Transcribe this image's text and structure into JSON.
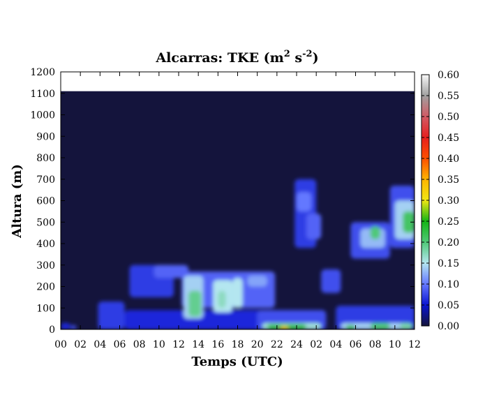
{
  "chart_data": {
    "type": "heatmap",
    "title": "Alcarras: TKE (m² s⁻²)",
    "title_parts": {
      "main": "Alcarras: TKE (m",
      "sup1": "2",
      "mid": " s",
      "sup2": "-2",
      "end": ")"
    },
    "xlabel": "Temps (UTC)",
    "ylabel": "Altura (m)",
    "x_ticks": [
      "00",
      "02",
      "04",
      "06",
      "08",
      "10",
      "12",
      "14",
      "16",
      "18",
      "20",
      "22",
      "24",
      "02",
      "04",
      "06",
      "08",
      "10",
      "12"
    ],
    "x_range_hours": [
      0,
      36
    ],
    "y_ticks": [
      "0",
      "100",
      "200",
      "300",
      "400",
      "500",
      "600",
      "700",
      "800",
      "900",
      "1000",
      "1100",
      "1200"
    ],
    "ylim": [
      0,
      1200
    ],
    "data_top_m": 1110,
    "colorbar": {
      "ticks": [
        "0.00",
        "0.05",
        "0.10",
        "0.15",
        "0.20",
        "0.25",
        "0.30",
        "0.35",
        "0.40",
        "0.45",
        "0.50",
        "0.55",
        "0.60"
      ],
      "range": [
        0,
        0.6
      ],
      "stops": [
        {
          "v": 0.0,
          "color": "#14143c"
        },
        {
          "v": 0.05,
          "color": "#0a14d2"
        },
        {
          "v": 0.1,
          "color": "#6478ff"
        },
        {
          "v": 0.15,
          "color": "#b4e6f0"
        },
        {
          "v": 0.2,
          "color": "#50c878"
        },
        {
          "v": 0.25,
          "color": "#14b414"
        },
        {
          "v": 0.3,
          "color": "#f0e614"
        },
        {
          "v": 0.35,
          "color": "#ffb400"
        },
        {
          "v": 0.4,
          "color": "#ff5000"
        },
        {
          "v": 0.45,
          "color": "#e61e1e"
        },
        {
          "v": 0.5,
          "color": "#d25a64"
        },
        {
          "v": 0.55,
          "color": "#a0a0a0"
        },
        {
          "v": 0.6,
          "color": "#f8f8f8"
        }
      ]
    },
    "background_value": 0.0,
    "features": [
      {
        "t": [
          0.0,
          1.0
        ],
        "z": [
          0,
          30
        ],
        "v": 0.06
      },
      {
        "t": [
          1.0,
          1.6
        ],
        "z": [
          0,
          20
        ],
        "v": 0.08
      },
      {
        "t": [
          3.8,
          6.5
        ],
        "z": [
          0,
          130
        ],
        "v": 0.07
      },
      {
        "t": [
          6.5,
          12.0
        ],
        "z": [
          0,
          90
        ],
        "v": 0.06
      },
      {
        "t": [
          7.0,
          11.5
        ],
        "z": [
          150,
          300
        ],
        "v": 0.07
      },
      {
        "t": [
          9.5,
          13.0
        ],
        "z": [
          240,
          300
        ],
        "v": 0.09
      },
      {
        "t": [
          11.0,
          22.0
        ],
        "z": [
          0,
          90
        ],
        "v": 0.06
      },
      {
        "t": [
          12.3,
          21.8
        ],
        "z": [
          100,
          270
        ],
        "v": 0.09
      },
      {
        "t": [
          12.5,
          14.5
        ],
        "z": [
          50,
          250
        ],
        "v": 0.14
      },
      {
        "t": [
          13.0,
          14.3
        ],
        "z": [
          60,
          180
        ],
        "v": 0.19
      },
      {
        "t": [
          15.5,
          17.5
        ],
        "z": [
          80,
          230
        ],
        "v": 0.15
      },
      {
        "t": [
          16.0,
          16.8
        ],
        "z": [
          100,
          180
        ],
        "v": 0.17
      },
      {
        "t": [
          17.5,
          18.5
        ],
        "z": [
          100,
          240
        ],
        "v": 0.15
      },
      {
        "t": [
          19.0,
          21.0
        ],
        "z": [
          200,
          250
        ],
        "v": 0.12
      },
      {
        "t": [
          20.0,
          27.0
        ],
        "z": [
          0,
          90
        ],
        "v": 0.08
      },
      {
        "t": [
          20.5,
          26.5
        ],
        "z": [
          0,
          30
        ],
        "v": 0.16
      },
      {
        "t": [
          21.0,
          25.0
        ],
        "z": [
          0,
          25
        ],
        "v": 0.22
      },
      {
        "t": [
          22.3,
          23.2
        ],
        "z": [
          0,
          15
        ],
        "v": 0.32
      },
      {
        "t": [
          26.5,
          28.5
        ],
        "z": [
          170,
          280
        ],
        "v": 0.08
      },
      {
        "t": [
          28.0,
          36.0
        ],
        "z": [
          0,
          110
        ],
        "v": 0.07
      },
      {
        "t": [
          28.5,
          35.5
        ],
        "z": [
          0,
          30
        ],
        "v": 0.14
      },
      {
        "t": [
          29.0,
          30.0
        ],
        "z": [
          0,
          20
        ],
        "v": 0.22
      },
      {
        "t": [
          31.5,
          33.5
        ],
        "z": [
          0,
          30
        ],
        "v": 0.2
      },
      {
        "t": [
          34.5,
          35.8
        ],
        "z": [
          0,
          30
        ],
        "v": 0.18
      },
      {
        "t": [
          23.8,
          26.0
        ],
        "z": [
          380,
          700
        ],
        "v": 0.07
      },
      {
        "t": [
          24.0,
          25.5
        ],
        "z": [
          550,
          640
        ],
        "v": 0.1
      },
      {
        "t": [
          25.0,
          26.5
        ],
        "z": [
          420,
          540
        ],
        "v": 0.09
      },
      {
        "t": [
          29.5,
          33.5
        ],
        "z": [
          330,
          500
        ],
        "v": 0.08
      },
      {
        "t": [
          30.5,
          33.0
        ],
        "z": [
          380,
          470
        ],
        "v": 0.13
      },
      {
        "t": [
          31.5,
          32.5
        ],
        "z": [
          420,
          480
        ],
        "v": 0.2
      },
      {
        "t": [
          33.5,
          36.0
        ],
        "z": [
          380,
          670
        ],
        "v": 0.08
      },
      {
        "t": [
          34.0,
          36.0
        ],
        "z": [
          420,
          600
        ],
        "v": 0.14
      },
      {
        "t": [
          34.8,
          36.0
        ],
        "z": [
          450,
          550
        ],
        "v": 0.21
      }
    ]
  }
}
